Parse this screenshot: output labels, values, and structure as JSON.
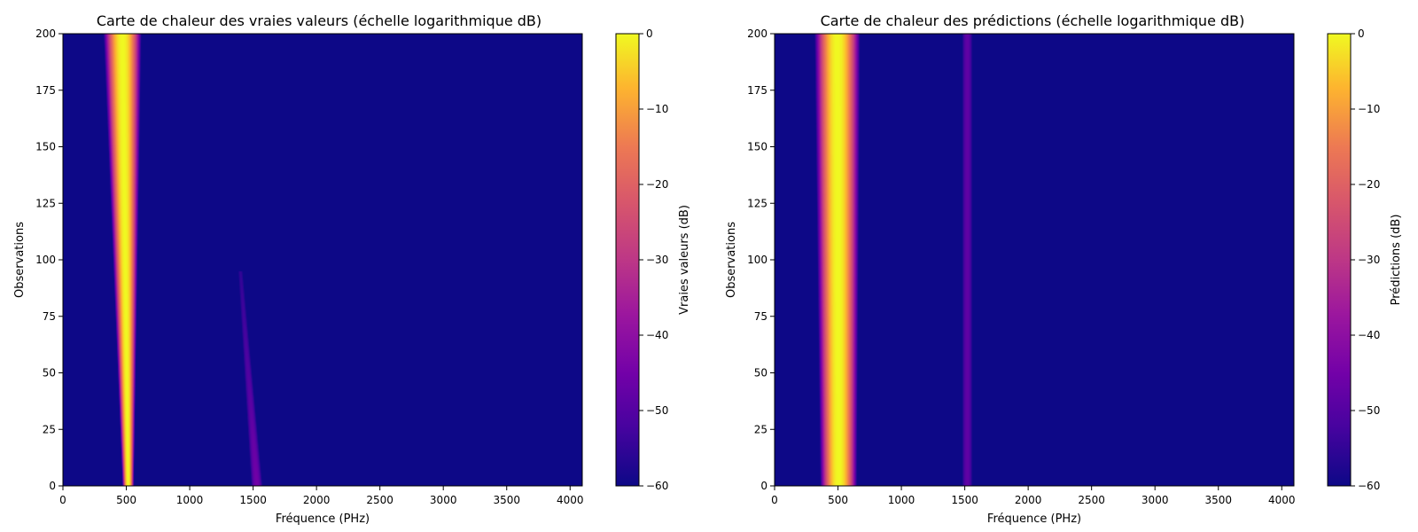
{
  "chart_data": [
    {
      "type": "heatmap",
      "title": "Carte de chaleur des vraies valeurs (échelle logarithmique dB)",
      "xlabel": "Fréquence (PHz)",
      "ylabel": "Observations",
      "xlim": [
        0,
        4096
      ],
      "ylim": [
        0,
        200
      ],
      "xticks": [
        0,
        500,
        1000,
        1500,
        2000,
        2500,
        3000,
        3500,
        4000
      ],
      "yticks": [
        0,
        25,
        50,
        75,
        100,
        125,
        150,
        175,
        200
      ],
      "colorbar": {
        "label": "Vraies valeurs (dB)",
        "range": [
          -60,
          0
        ],
        "ticks": [
          0,
          -10,
          -20,
          -30,
          -40,
          -50,
          -60
        ],
        "colormap": "plasma"
      },
      "features": [
        {
          "kind": "band",
          "center_at_bottom": 515,
          "center_at_top": 470,
          "halfwidth_at_bottom": 45,
          "halfwidth_at_top": 150,
          "peak_db": 0
        },
        {
          "kind": "faint-band",
          "center_at_bottom": 1530,
          "center_at_top": 1400,
          "y_range": [
            0,
            95
          ],
          "halfwidth": 45,
          "peak_db": -45
        }
      ]
    },
    {
      "type": "heatmap",
      "title": "Carte de chaleur des prédictions (échelle logarithmique dB)",
      "xlabel": "Fréquence (PHz)",
      "ylabel": "Observations",
      "xlim": [
        0,
        4096
      ],
      "ylim": [
        0,
        200
      ],
      "xticks": [
        0,
        500,
        1000,
        1500,
        2000,
        2500,
        3000,
        3500,
        4000
      ],
      "yticks": [
        0,
        25,
        50,
        75,
        100,
        125,
        150,
        175,
        200
      ],
      "colorbar": {
        "label": "Prédictions (dB)",
        "range": [
          -60,
          0
        ],
        "ticks": [
          0,
          -10,
          -20,
          -30,
          -40,
          -50,
          -60
        ],
        "colormap": "plasma"
      },
      "features": [
        {
          "kind": "band",
          "center_at_bottom": 505,
          "center_at_top": 495,
          "halfwidth_at_bottom": 145,
          "halfwidth_at_top": 180,
          "peak_db": 0
        },
        {
          "kind": "line",
          "center": 1520,
          "y_range": [
            0,
            200
          ],
          "halfwidth": 40,
          "peak_db": -48
        }
      ]
    }
  ]
}
